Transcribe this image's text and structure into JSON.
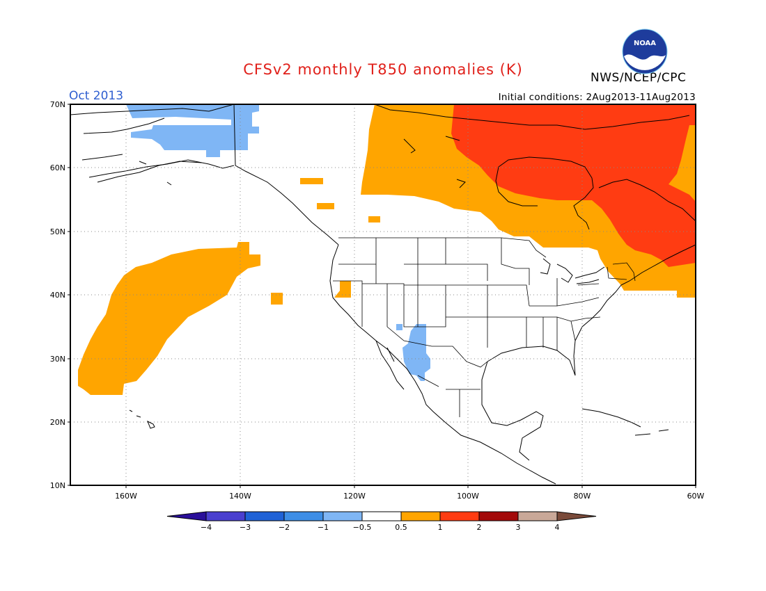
{
  "header": {
    "title": "CFSv2 monthly T850 anomalies (K)",
    "period": "Oct 2013",
    "initial_conditions": "Initial conditions: 2Aug2013-11Aug2013",
    "agency": "NWS/NCEP/CPC",
    "logo_text": "NOAA"
  },
  "map": {
    "lat_labels": [
      "70N",
      "60N",
      "50N",
      "40N",
      "30N",
      "20N",
      "10N"
    ],
    "lon_labels": [
      "160W",
      "140W",
      "120W",
      "100W",
      "80W",
      "60W"
    ]
  },
  "legend": {
    "labels": [
      "-4",
      "-3",
      "-2",
      "-1",
      "-0.5",
      "0.5",
      "1",
      "2",
      "3",
      "4"
    ],
    "colors": [
      "#2a0f9a",
      "#4a3fcf",
      "#1f62d6",
      "#3d8ee6",
      "#7fb6f5",
      "#ffffff",
      "#ffa500",
      "#ff3c12",
      "#a30a0a",
      "#c9a898",
      "#7a4a3a"
    ]
  }
}
